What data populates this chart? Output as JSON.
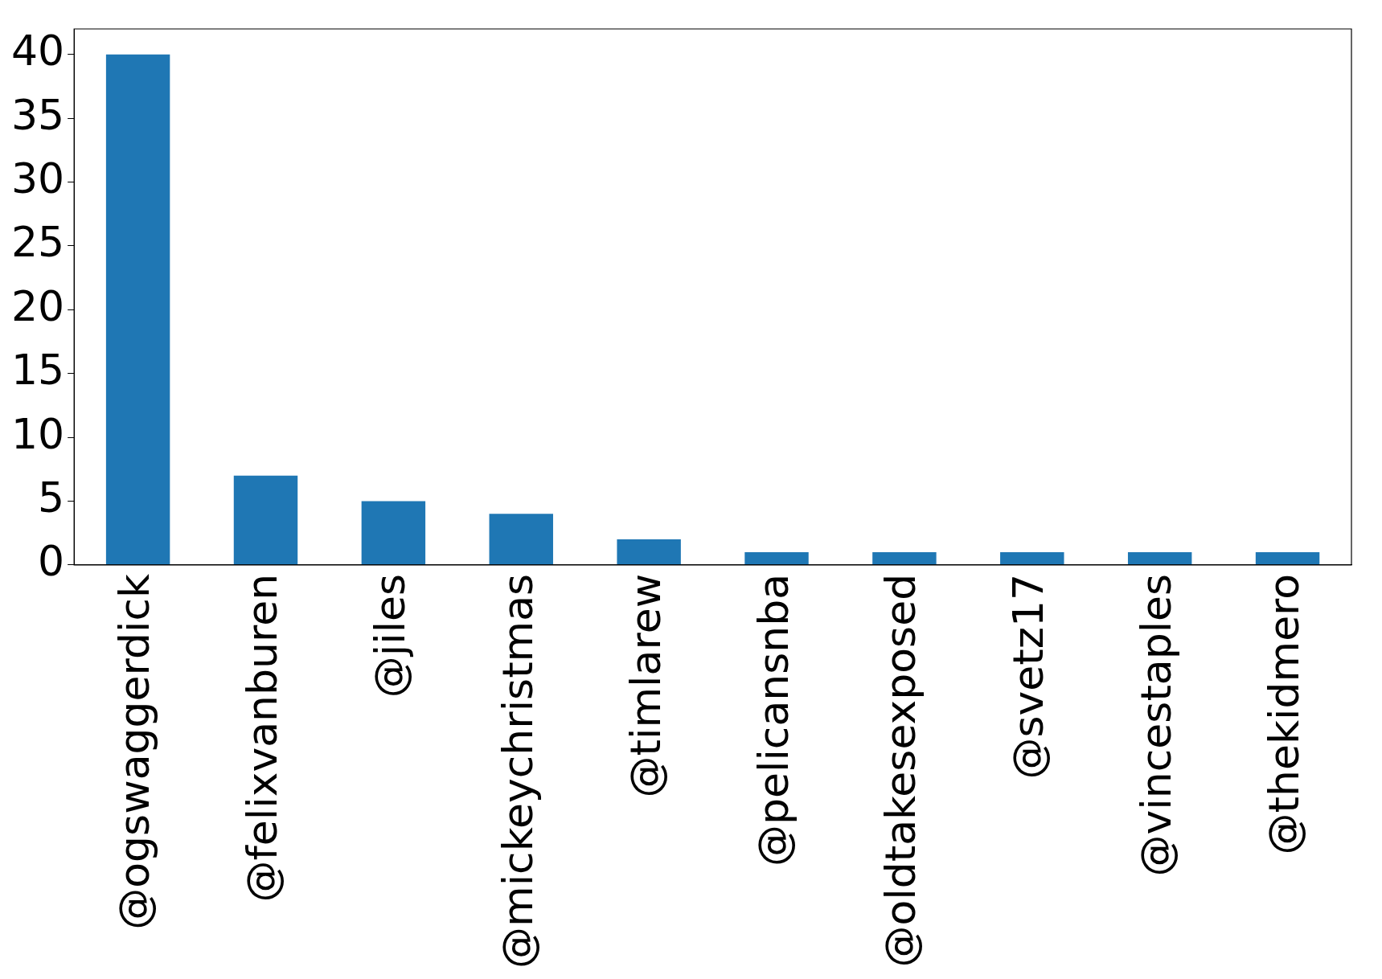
{
  "chart_data": {
    "type": "bar",
    "categories": [
      "@ogswaggerdick",
      "@felixvanburen",
      "@jiles",
      "@mickeychristmas",
      "@timlarew",
      "@pelicansnba",
      "@oldtakesexposed",
      "@svetz17",
      "@vincestaples",
      "@thekidmero"
    ],
    "values": [
      40,
      7,
      5,
      4,
      2,
      1,
      1,
      1,
      1,
      1
    ],
    "color": "#1f77b4",
    "ylim": [
      0,
      42
    ],
    "yticks": [
      0,
      5,
      10,
      15,
      20,
      25,
      30,
      35,
      40
    ],
    "grid": false,
    "legend": false
  }
}
